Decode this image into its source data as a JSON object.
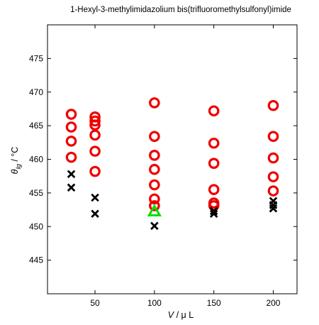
{
  "chart_data": {
    "type": "scatter",
    "title": "1-Hexyl-3-methylimidazolium bis(trifluoromethylsulfonyl)imide",
    "xlabel": {
      "var": "V",
      "unit": " / μ L"
    },
    "ylabel": {
      "var": "θ",
      "sub": "lg",
      "unit": " / °C"
    },
    "xlim": [
      10,
      220
    ],
    "ylim": [
      440,
      480
    ],
    "xticks": [
      50,
      100,
      150,
      200
    ],
    "yticks": [
      445,
      450,
      455,
      460,
      465,
      470,
      475
    ],
    "grid": false,
    "series": [
      {
        "marker": "circle",
        "color": "#ee0000",
        "points": [
          [
            30,
            466.7
          ],
          [
            30,
            464.8
          ],
          [
            30,
            462.7
          ],
          [
            30,
            460.3
          ],
          [
            50,
            466.3
          ],
          [
            50,
            465.7
          ],
          [
            50,
            465.1
          ],
          [
            50,
            463.6
          ],
          [
            50,
            461.2
          ],
          [
            50,
            458.2
          ],
          [
            100,
            468.4
          ],
          [
            100,
            463.4
          ],
          [
            100,
            460.6
          ],
          [
            100,
            458.5
          ],
          [
            100,
            456.2
          ],
          [
            100,
            454.1
          ],
          [
            100,
            453.1
          ],
          [
            150,
            467.2
          ],
          [
            150,
            462.4
          ],
          [
            150,
            459.4
          ],
          [
            150,
            455.5
          ],
          [
            150,
            453.5
          ],
          [
            150,
            453.1
          ],
          [
            200,
            468.0
          ],
          [
            200,
            463.4
          ],
          [
            200,
            460.2
          ],
          [
            200,
            457.4
          ],
          [
            200,
            455.3
          ]
        ]
      },
      {
        "marker": "x",
        "color": "#000000",
        "points": [
          [
            30,
            457.8
          ],
          [
            30,
            455.8
          ],
          [
            50,
            454.3
          ],
          [
            50,
            451.9
          ],
          [
            100,
            450.1
          ],
          [
            150,
            452.3
          ],
          [
            150,
            451.9
          ],
          [
            200,
            453.8
          ],
          [
            200,
            453.2
          ],
          [
            200,
            452.7
          ]
        ]
      },
      {
        "marker": "triangle",
        "color": "#00dd00",
        "points": [
          [
            100,
            452.2
          ]
        ]
      }
    ]
  }
}
